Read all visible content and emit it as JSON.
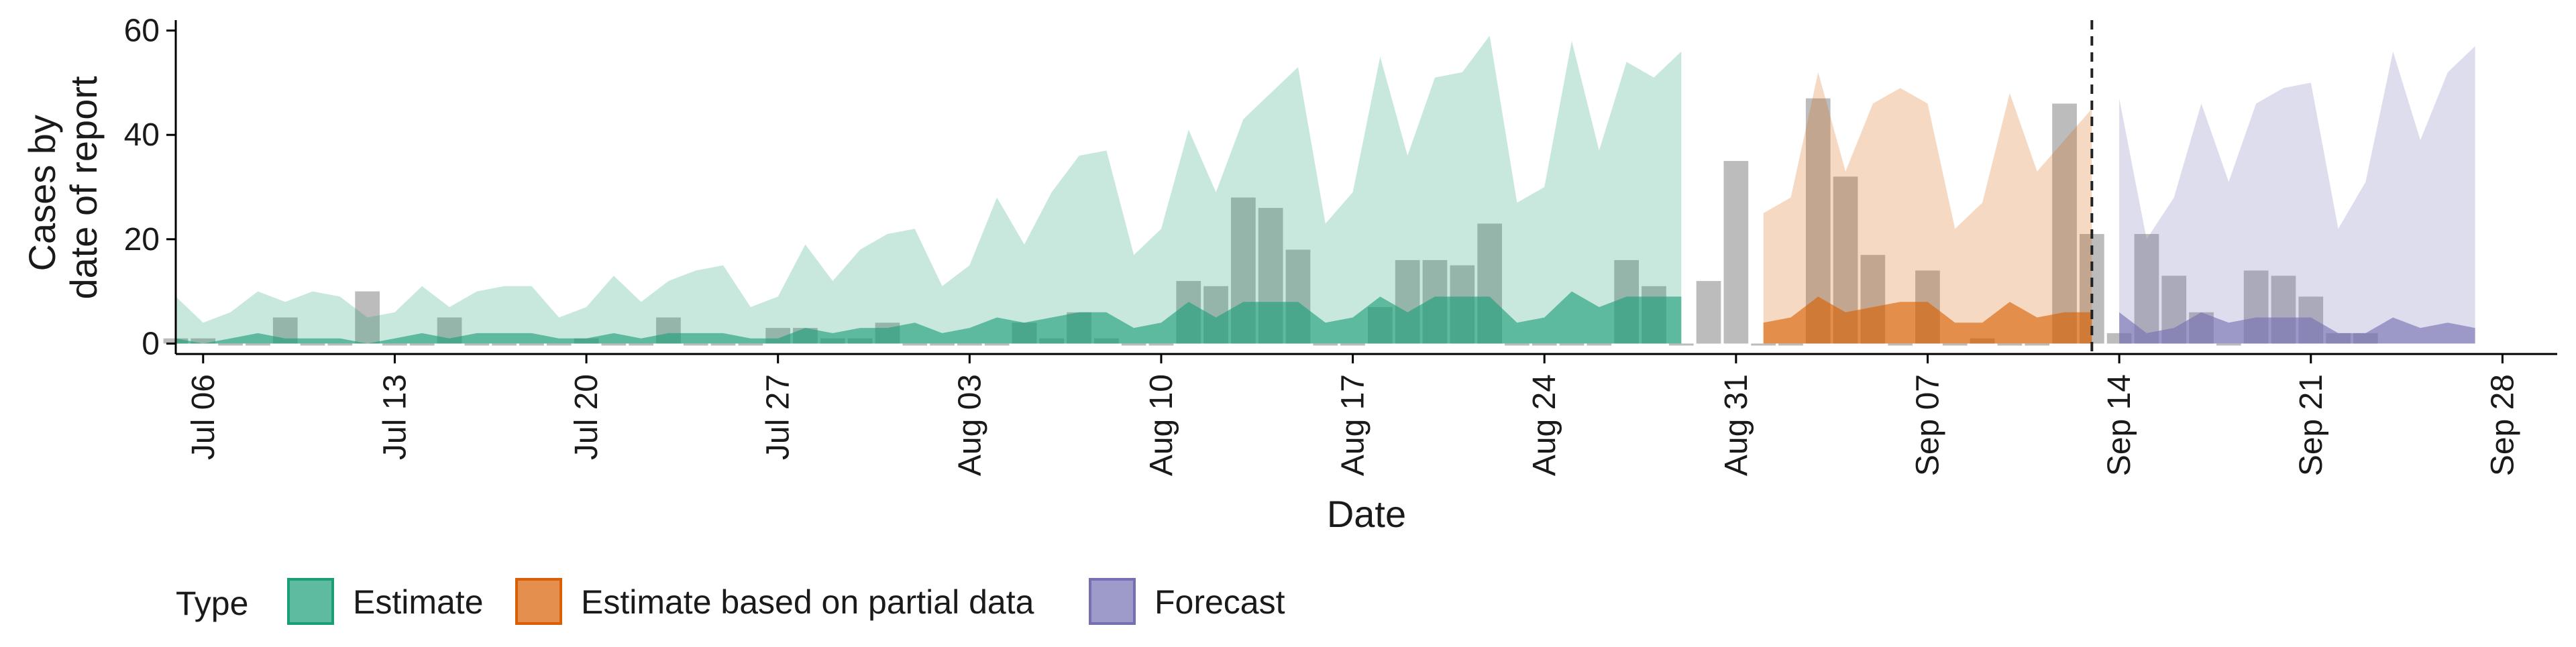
{
  "chart_data": {
    "type": "area",
    "xlabel": "Date",
    "ylabel": [
      "Cases by",
      "date of report"
    ],
    "x_start": "2020-07-05",
    "x_end": "2020-09-30",
    "ylim": [
      -2,
      62
    ],
    "y_ticks": [
      0,
      20,
      40,
      60
    ],
    "x_ticks": [
      {
        "date": "2020-07-06",
        "label": "Jul 06"
      },
      {
        "date": "2020-07-13",
        "label": "Jul 13"
      },
      {
        "date": "2020-07-20",
        "label": "Jul 20"
      },
      {
        "date": "2020-07-27",
        "label": "Jul 27"
      },
      {
        "date": "2020-08-03",
        "label": "Aug 03"
      },
      {
        "date": "2020-08-10",
        "label": "Aug 10"
      },
      {
        "date": "2020-08-17",
        "label": "Aug 17"
      },
      {
        "date": "2020-08-24",
        "label": "Aug 24"
      },
      {
        "date": "2020-08-31",
        "label": "Aug 31"
      },
      {
        "date": "2020-09-07",
        "label": "Sep 07"
      },
      {
        "date": "2020-09-14",
        "label": "Sep 14"
      },
      {
        "date": "2020-09-21",
        "label": "Sep 21"
      },
      {
        "date": "2020-09-28",
        "label": "Sep 28"
      }
    ],
    "forecast_line_date": "2020-09-13",
    "grid": false,
    "legend": {
      "position": "bottom",
      "title": "Type"
    },
    "series": [
      {
        "name": "Estimate",
        "color": "#1b9e77",
        "start_date": "2020-07-05",
        "upper": [
          9,
          4,
          6,
          10,
          8,
          10,
          9,
          5,
          6,
          11,
          7,
          10,
          11,
          11,
          5,
          7,
          13,
          8,
          12,
          14,
          15,
          7,
          9,
          19,
          12,
          18,
          21,
          22,
          11,
          15,
          28,
          19,
          29,
          36,
          37,
          17,
          22,
          41,
          29,
          43,
          48,
          53,
          23,
          29,
          55,
          36,
          51,
          52,
          59,
          27,
          30,
          58,
          37,
          54,
          51,
          56
        ],
        "lower": [
          0,
          0,
          0,
          0,
          0,
          0,
          0,
          0,
          0,
          0,
          0,
          0,
          0,
          0,
          0,
          0,
          0,
          0,
          0,
          0,
          0,
          0,
          0,
          0,
          0,
          0,
          0,
          0,
          0,
          0,
          0,
          0,
          0,
          0,
          0,
          0,
          0,
          0,
          0,
          0,
          0,
          0,
          0,
          0,
          0,
          0,
          0,
          0,
          0,
          0,
          0,
          0,
          0,
          0,
          0,
          0
        ],
        "inner": [
          1,
          0,
          1,
          2,
          1,
          1,
          1,
          0,
          1,
          2,
          1,
          2,
          2,
          2,
          1,
          1,
          2,
          1,
          2,
          2,
          2,
          1,
          1,
          3,
          2,
          3,
          3,
          4,
          2,
          3,
          5,
          4,
          5,
          6,
          6,
          3,
          4,
          8,
          5,
          8,
          8,
          8,
          4,
          5,
          9,
          6,
          9,
          9,
          9,
          4,
          5,
          10,
          7,
          9,
          9,
          9
        ]
      },
      {
        "name": "Estimate based on partial data",
        "color": "#d95f02",
        "start_date": "2020-09-01",
        "upper": [
          25,
          28,
          52,
          33,
          46,
          49,
          46,
          22,
          27,
          48,
          33,
          39,
          45
        ],
        "lower": [
          0,
          0,
          0,
          0,
          0,
          0,
          0,
          0,
          0,
          0,
          0,
          0,
          0
        ],
        "inner": [
          4,
          5,
          9,
          6,
          7,
          8,
          8,
          4,
          4,
          8,
          5,
          6,
          6
        ]
      },
      {
        "name": "Forecast",
        "color": "#7570b3",
        "start_date": "2020-09-14",
        "upper": [
          47,
          20,
          28,
          46,
          31,
          46,
          49,
          50,
          22,
          31,
          56,
          39,
          52,
          57
        ],
        "lower": [
          0,
          0,
          0,
          0,
          0,
          0,
          0,
          0,
          0,
          0,
          0,
          0,
          0,
          0
        ],
        "inner": [
          6,
          2,
          3,
          6,
          4,
          5,
          5,
          5,
          2,
          2,
          5,
          3,
          4,
          3
        ]
      }
    ],
    "reported_cases": {
      "start_date": "2020-07-05",
      "color": "#a0a0a0",
      "values": [
        1,
        1,
        0,
        0,
        5,
        0,
        0,
        10,
        0,
        0,
        5,
        0,
        0,
        0,
        0,
        1,
        0,
        0,
        5,
        0,
        0,
        0,
        3,
        3,
        1,
        1,
        4,
        0,
        0,
        0,
        0,
        4,
        1,
        6,
        1,
        0,
        0,
        12,
        11,
        28,
        26,
        18,
        0,
        0,
        7,
        16,
        16,
        15,
        23,
        0,
        0,
        0,
        0,
        16,
        11,
        0,
        12,
        35,
        0,
        0,
        47,
        32,
        17,
        0,
        14,
        0,
        1,
        0,
        0,
        46,
        21,
        2,
        21,
        13,
        6,
        0,
        14,
        13,
        9,
        2,
        2
      ]
    }
  }
}
